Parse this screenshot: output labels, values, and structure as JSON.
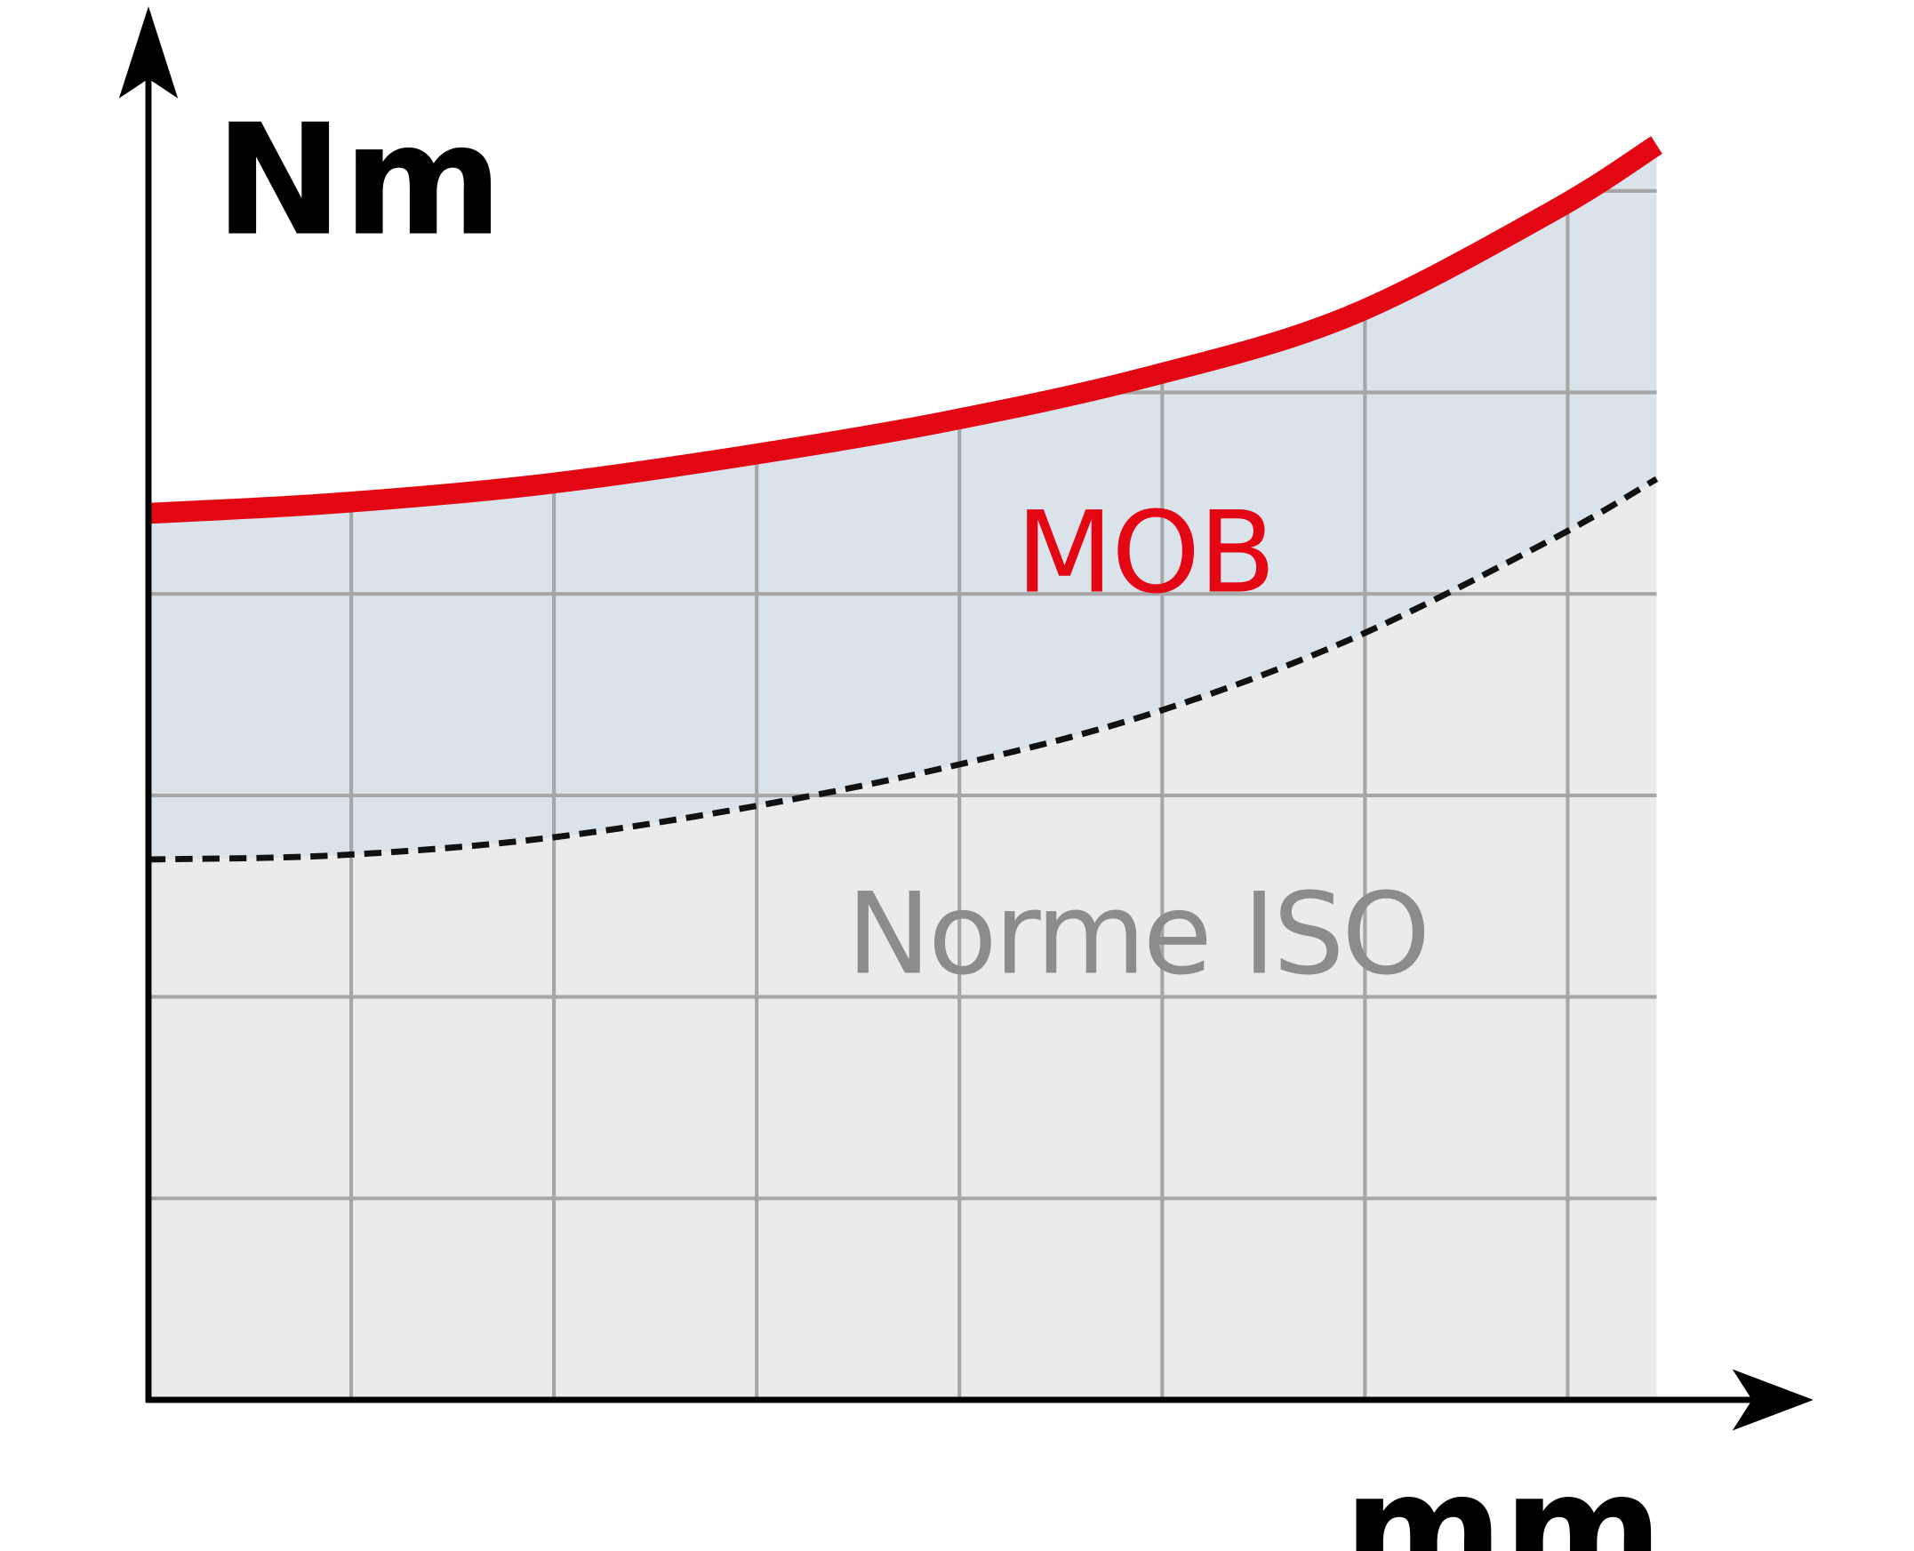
{
  "chart_data": {
    "type": "area",
    "title": "",
    "xlabel": "mm",
    "ylabel": "Nm",
    "grid": true,
    "xlim": [
      0,
      7.45
    ],
    "ylim": [
      0,
      6.9
    ],
    "x": [
      0,
      0.92,
      1.92,
      2.92,
      3.92,
      4.92,
      5.92,
      6.93,
      7.45
    ],
    "series": [
      {
        "name": "MOB",
        "values": [
          4.38,
          4.43,
          4.52,
          4.66,
          4.83,
          5.05,
          5.35,
          5.87,
          6.2
        ],
        "color": "#e30613",
        "style": "solid"
      },
      {
        "name": "Norme ISO",
        "values": [
          2.67,
          2.69,
          2.77,
          2.92,
          3.12,
          3.38,
          3.75,
          4.25,
          4.55
        ],
        "color": "#111111",
        "style": "dashed"
      }
    ],
    "colors": {
      "band_fill": "#dae3ea",
      "below_fill": "#ebebeb",
      "grid": "#a6a6a6",
      "iso_label": "#8c8c8c"
    }
  }
}
